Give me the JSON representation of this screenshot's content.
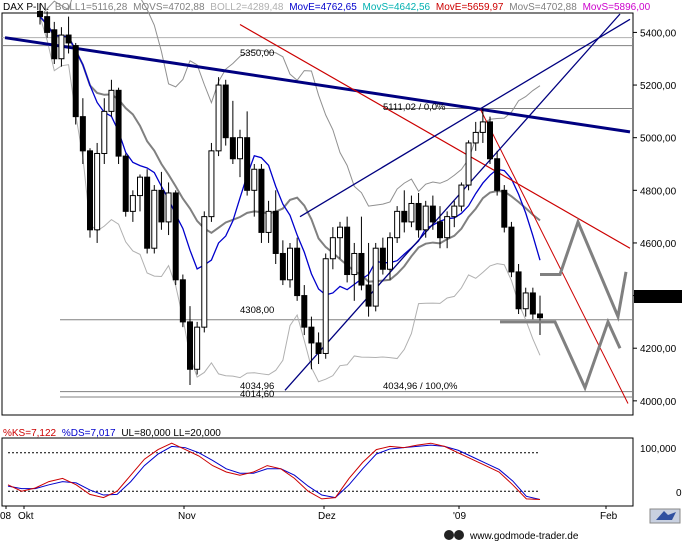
{
  "header": {
    "symbol": "DAX P-IN.",
    "indicators": [
      {
        "label": "BOLL1=5116,28",
        "color": "#808080"
      },
      {
        "label": "MOVS=4702,88",
        "color": "#808080"
      },
      {
        "label": "BOLL2=4289,48",
        "color": "#c0c0c0"
      },
      {
        "label": "MovE=4762,65",
        "color": "#0000cc"
      },
      {
        "label": "MovS=4642,56",
        "color": "#00c0c0"
      },
      {
        "label": "MovE=5659,97",
        "color": "#cc0000"
      },
      {
        "label": "MovS=4702,88",
        "color": "#808080"
      },
      {
        "label": "MovS=5896,00",
        "color": "#cc00cc"
      }
    ]
  },
  "price_axis": {
    "ticks": [
      "5400,00",
      "5200,00",
      "5000,00",
      "4800,00",
      "4600,00",
      "4400,00",
      "4200,00",
      "4000,00"
    ],
    "current_price": "4316,14"
  },
  "annotations": {
    "level_5350": "5350,00",
    "level_5111": "5111,02 / 0,0%",
    "level_4308": "4308,00",
    "level_4034a": "4034,96",
    "level_4014": "4014,60",
    "level_4034b": "4034,96 / 100,0%"
  },
  "oscillator": {
    "header": [
      {
        "label": "%KS=7,122",
        "color": "#cc0000"
      },
      {
        "label": "%DS=7,017",
        "color": "#0000cc"
      },
      {
        "label": "UL=80,000 LL=20,000",
        "color": "#000000"
      }
    ],
    "ticks": [
      "100,000",
      "0"
    ]
  },
  "time_axis": {
    "labels": [
      "08",
      "Okt",
      "Nov",
      "Dez",
      "'09",
      "Feb"
    ]
  },
  "footer": {
    "url": "www.godmode-trader.de"
  },
  "colors": {
    "bullish": "#ffffff",
    "bearish": "#000000",
    "trend_blue": "#000080",
    "trend_red": "#cc0000",
    "ma_blue": "#0000cc",
    "ma_gray": "#808080",
    "forecast": "#808080"
  },
  "chart_data": {
    "type": "candlestick",
    "title": "DAX P-IN.",
    "ylim": [
      3950,
      5470
    ],
    "y_ticks": [
      4000,
      4200,
      4400,
      4600,
      4800,
      5000,
      5200,
      5400
    ],
    "x_labels": [
      "08",
      "Okt",
      "Nov",
      "Dez",
      "'09",
      "Feb"
    ],
    "candles": [
      {
        "o": 5480,
        "h": 5510,
        "l": 5430,
        "c": 5460
      },
      {
        "o": 5460,
        "h": 5480,
        "l": 5380,
        "c": 5400
      },
      {
        "o": 5410,
        "h": 5440,
        "l": 5280,
        "c": 5300
      },
      {
        "o": 5300,
        "h": 5420,
        "l": 5270,
        "c": 5390
      },
      {
        "o": 5390,
        "h": 5460,
        "l": 5320,
        "c": 5360
      },
      {
        "o": 5350,
        "h": 5360,
        "l": 5050,
        "c": 5080
      },
      {
        "o": 5080,
        "h": 5150,
        "l": 4900,
        "c": 4950
      },
      {
        "o": 4950,
        "h": 4960,
        "l": 4620,
        "c": 4650
      },
      {
        "o": 4650,
        "h": 4980,
        "l": 4600,
        "c": 4940
      },
      {
        "o": 4940,
        "h": 5150,
        "l": 4900,
        "c": 5100
      },
      {
        "o": 5100,
        "h": 5220,
        "l": 5080,
        "c": 5180
      },
      {
        "o": 5180,
        "h": 5190,
        "l": 4900,
        "c": 4930
      },
      {
        "o": 4930,
        "h": 4940,
        "l": 4700,
        "c": 4720
      },
      {
        "o": 4720,
        "h": 4800,
        "l": 4680,
        "c": 4780
      },
      {
        "o": 4780,
        "h": 4860,
        "l": 4720,
        "c": 4850
      },
      {
        "o": 4850,
        "h": 4880,
        "l": 4560,
        "c": 4580
      },
      {
        "o": 4580,
        "h": 4820,
        "l": 4560,
        "c": 4800
      },
      {
        "o": 4800,
        "h": 4870,
        "l": 4650,
        "c": 4680
      },
      {
        "o": 4680,
        "h": 4830,
        "l": 4630,
        "c": 4790
      },
      {
        "o": 4790,
        "h": 4800,
        "l": 4440,
        "c": 4460
      },
      {
        "o": 4460,
        "h": 4480,
        "l": 4280,
        "c": 4300
      },
      {
        "o": 4300,
        "h": 4360,
        "l": 4060,
        "c": 4120
      },
      {
        "o": 4120,
        "h": 4300,
        "l": 4100,
        "c": 4280
      },
      {
        "o": 4280,
        "h": 4720,
        "l": 4260,
        "c": 4700
      },
      {
        "o": 4700,
        "h": 4980,
        "l": 4680,
        "c": 4950
      },
      {
        "o": 4950,
        "h": 5230,
        "l": 4930,
        "c": 5200
      },
      {
        "o": 5200,
        "h": 5220,
        "l": 4970,
        "c": 5000
      },
      {
        "o": 5000,
        "h": 5140,
        "l": 4900,
        "c": 4920
      },
      {
        "o": 4920,
        "h": 5030,
        "l": 4850,
        "c": 5000
      },
      {
        "o": 5000,
        "h": 5100,
        "l": 4780,
        "c": 4800
      },
      {
        "o": 4800,
        "h": 4900,
        "l": 4700,
        "c": 4880
      },
      {
        "o": 4880,
        "h": 4900,
        "l": 4600,
        "c": 4640
      },
      {
        "o": 4640,
        "h": 4760,
        "l": 4600,
        "c": 4720
      },
      {
        "o": 4720,
        "h": 4800,
        "l": 4520,
        "c": 4560
      },
      {
        "o": 4560,
        "h": 4610,
        "l": 4440,
        "c": 4460
      },
      {
        "o": 4460,
        "h": 4600,
        "l": 4430,
        "c": 4580
      },
      {
        "o": 4580,
        "h": 4620,
        "l": 4380,
        "c": 4400
      },
      {
        "o": 4400,
        "h": 4440,
        "l": 4250,
        "c": 4280
      },
      {
        "o": 4280,
        "h": 4320,
        "l": 4120,
        "c": 4220
      },
      {
        "o": 4220,
        "h": 4260,
        "l": 4140,
        "c": 4180
      },
      {
        "o": 4180,
        "h": 4560,
        "l": 4160,
        "c": 4540
      },
      {
        "o": 4540,
        "h": 4660,
        "l": 4500,
        "c": 4620
      },
      {
        "o": 4620,
        "h": 4680,
        "l": 4540,
        "c": 4660
      },
      {
        "o": 4660,
        "h": 4700,
        "l": 4450,
        "c": 4480
      },
      {
        "o": 4480,
        "h": 4600,
        "l": 4380,
        "c": 4560
      },
      {
        "o": 4560,
        "h": 4700,
        "l": 4420,
        "c": 4440
      },
      {
        "o": 4440,
        "h": 4600,
        "l": 4320,
        "c": 4360
      },
      {
        "o": 4360,
        "h": 4600,
        "l": 4340,
        "c": 4580
      },
      {
        "o": 4580,
        "h": 4620,
        "l": 4480,
        "c": 4500
      },
      {
        "o": 4500,
        "h": 4640,
        "l": 4460,
        "c": 4620
      },
      {
        "o": 4620,
        "h": 4740,
        "l": 4600,
        "c": 4720
      },
      {
        "o": 4720,
        "h": 4800,
        "l": 4640,
        "c": 4680
      },
      {
        "o": 4680,
        "h": 4780,
        "l": 4660,
        "c": 4750
      },
      {
        "o": 4750,
        "h": 4790,
        "l": 4620,
        "c": 4650
      },
      {
        "o": 4650,
        "h": 4760,
        "l": 4620,
        "c": 4740
      },
      {
        "o": 4740,
        "h": 4780,
        "l": 4650,
        "c": 4680
      },
      {
        "o": 4680,
        "h": 4740,
        "l": 4580,
        "c": 4620
      },
      {
        "o": 4620,
        "h": 4720,
        "l": 4580,
        "c": 4700
      },
      {
        "o": 4700,
        "h": 4760,
        "l": 4660,
        "c": 4740
      },
      {
        "o": 4740,
        "h": 4830,
        "l": 4720,
        "c": 4820
      },
      {
        "o": 4820,
        "h": 4990,
        "l": 4800,
        "c": 4980
      },
      {
        "o": 4980,
        "h": 5060,
        "l": 4950,
        "c": 5020
      },
      {
        "o": 5020,
        "h": 5111,
        "l": 4980,
        "c": 5060
      },
      {
        "o": 5060,
        "h": 5080,
        "l": 4900,
        "c": 4920
      },
      {
        "o": 4920,
        "h": 4950,
        "l": 4780,
        "c": 4800
      },
      {
        "o": 4800,
        "h": 4820,
        "l": 4640,
        "c": 4660
      },
      {
        "o": 4660,
        "h": 4680,
        "l": 4470,
        "c": 4490
      },
      {
        "o": 4490,
        "h": 4520,
        "l": 4330,
        "c": 4350
      },
      {
        "o": 4350,
        "h": 4430,
        "l": 4320,
        "c": 4410
      },
      {
        "o": 4410,
        "h": 4430,
        "l": 4310,
        "c": 4330
      },
      {
        "o": 4330,
        "h": 4400,
        "l": 4250,
        "c": 4316
      }
    ],
    "levels": [
      5350,
      5111.02,
      4308,
      4034.96,
      4014.6
    ],
    "oscillator": {
      "k": [
        30,
        20,
        25,
        35,
        40,
        30,
        15,
        10,
        20,
        45,
        70,
        85,
        95,
        85,
        75,
        60,
        50,
        45,
        50,
        60,
        55,
        40,
        20,
        8,
        10,
        40,
        65,
        85,
        90,
        88,
        92,
        95,
        90,
        80,
        70,
        60,
        50,
        30,
        8,
        7
      ],
      "d": [
        28,
        24,
        24,
        30,
        35,
        33,
        22,
        14,
        15,
        35,
        60,
        78,
        90,
        88,
        80,
        68,
        55,
        48,
        48,
        55,
        55,
        45,
        28,
        14,
        10,
        30,
        55,
        78,
        86,
        88,
        90,
        92,
        90,
        84,
        74,
        64,
        54,
        36,
        12,
        7
      ],
      "upper_limit": 80,
      "lower_limit": 20,
      "ylim": [
        0,
        100
      ]
    }
  }
}
